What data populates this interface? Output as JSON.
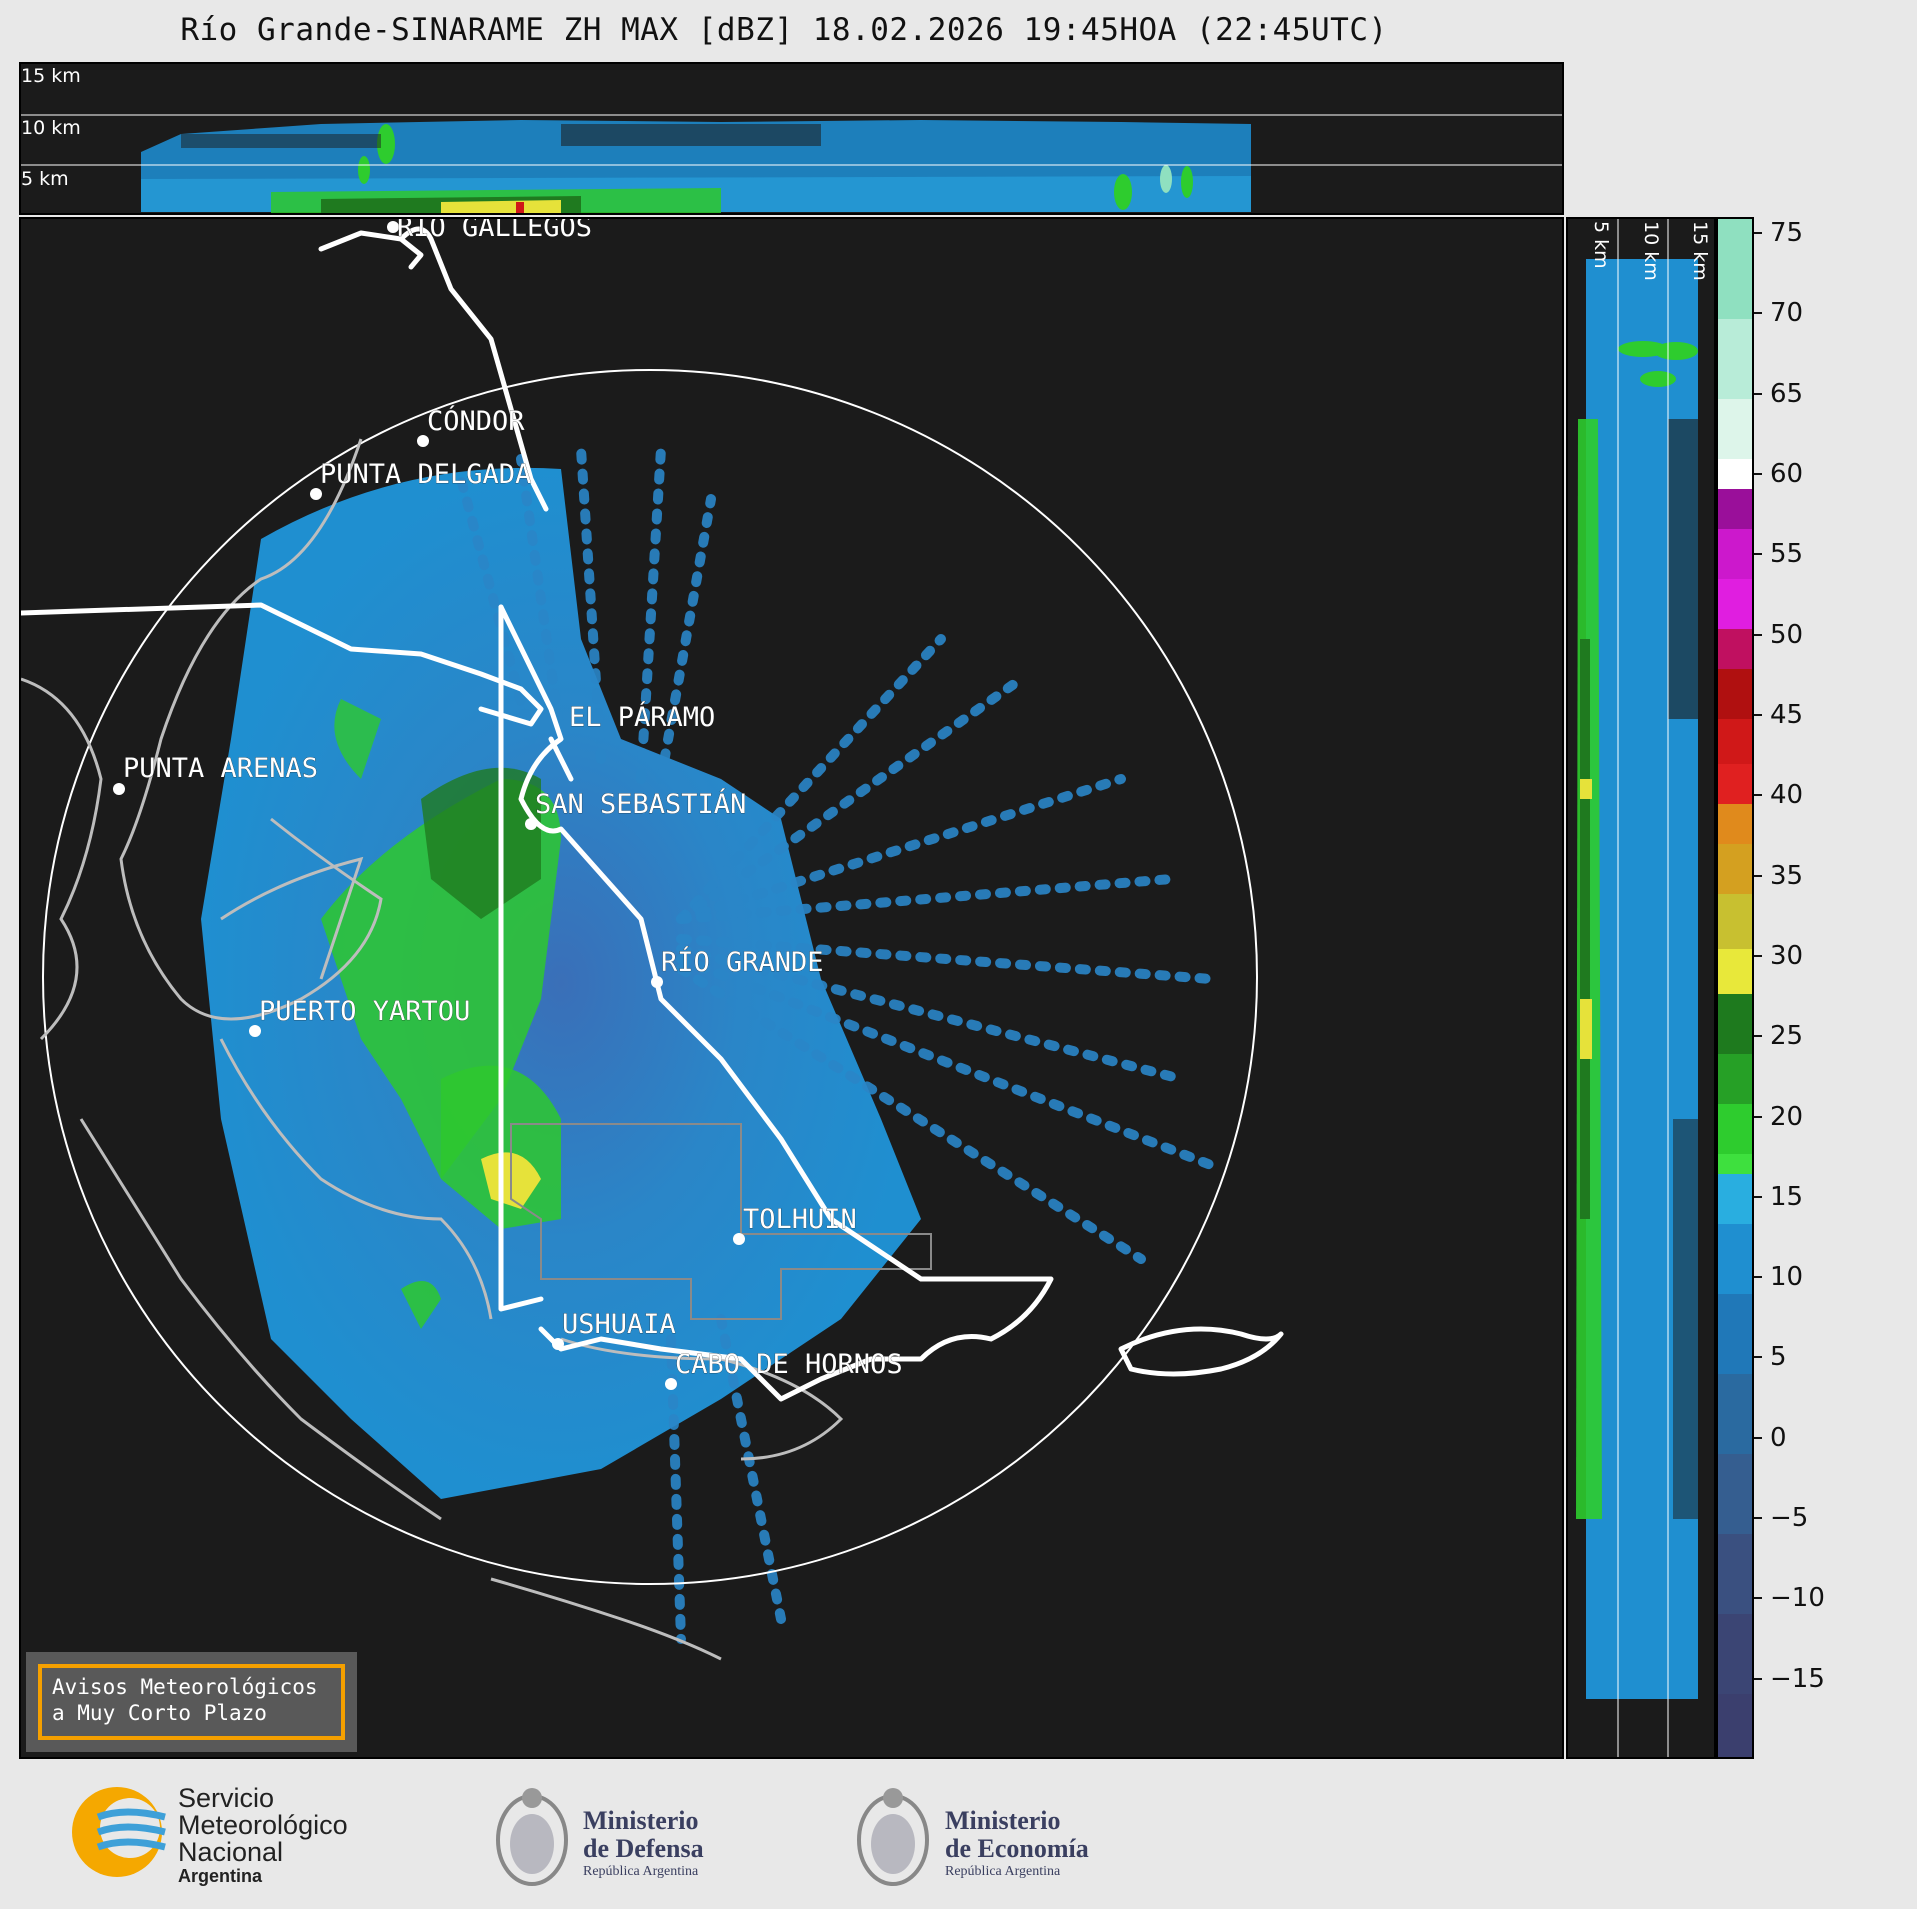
{
  "title": "Río Grande-SINARAME ZH MAX [dBZ] 18.02.2026 19:45HOA (22:45UTC)",
  "top_panel": {
    "altitude_labels": [
      "15 km",
      "10 km",
      "5 km"
    ]
  },
  "side_panel": {
    "altitude_labels": [
      "5 km",
      "10 km",
      "15 km"
    ]
  },
  "map": {
    "cities": [
      {
        "name": "RÍO GALLEGOS"
      },
      {
        "name": "CÓNDOR"
      },
      {
        "name": "PUNTA DELGADA"
      },
      {
        "name": "EL PÁRAMO"
      },
      {
        "name": "PUNTA ARENAS"
      },
      {
        "name": "SAN SEBASTIÁN"
      },
      {
        "name": "RÍO GRANDE"
      },
      {
        "name": "PUERTO YARTOU"
      },
      {
        "name": "TOLHUIN"
      },
      {
        "name": "USHUAIA"
      },
      {
        "name": "CABO DE HORNOS"
      }
    ]
  },
  "colorbar": {
    "unit": "dBZ",
    "ticks": [
      "75",
      "70",
      "65",
      "60",
      "55",
      "50",
      "45",
      "40",
      "35",
      "30",
      "25",
      "20",
      "15",
      "10",
      "5",
      "0",
      "−5",
      "−10",
      "−15"
    ],
    "range": [
      -20,
      76
    ],
    "colors": {
      "low": "#3b3f6e",
      "blue": "#1f8fd0",
      "cyan": "#29aee0",
      "green": "#2ecc2e",
      "dark_green": "#1e7a1e",
      "yellow": "#e8e83a",
      "orange": "#e08a1c",
      "red": "#d01818",
      "magenta": "#e01ee0",
      "purple": "#9a0f9a",
      "white": "#ffffff",
      "mint": "#8fe0c0"
    }
  },
  "warning": {
    "line1": "Avisos Meteorológicos",
    "line2": "a Muy Corto Plazo"
  },
  "logos": {
    "smn": {
      "line1": "Servicio",
      "line2": "Meteorológico",
      "line3": "Nacional",
      "line4": "Argentina"
    },
    "defensa": {
      "line1": "Ministerio",
      "line2": "de Defensa",
      "line3": "República Argentina"
    },
    "economia": {
      "line1": "Ministerio",
      "line2": "de Economía",
      "line3": "República Argentina"
    }
  }
}
